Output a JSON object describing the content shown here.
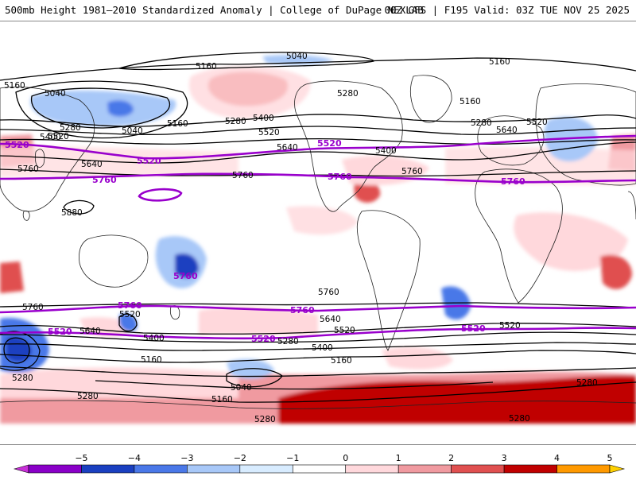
{
  "header": {
    "title": "500mb Height 1981–2010 Standardized Anomaly | College of DuPage NEXLAB",
    "model_valid": "00Z GFS | F195 Valid: 03Z TUE NOV 25 2025"
  },
  "colors": {
    "purple_contour": "#9900cc",
    "black_contour": "#000000",
    "land_outline": "#222222"
  },
  "contour_labels": {
    "l5040a": "5040",
    "l5160a": "5160",
    "l5160b": "5160",
    "l5160c": "5160",
    "l5160d": "5160",
    "l5040b": "5040",
    "l5040c": "5040",
    "l5280a": "5280",
    "l5280b": "5280",
    "l5280c": "5280",
    "l5280d": "5280",
    "l5400a": "5400",
    "l5400b": "5400",
    "l5520a": "5520",
    "l5520b": "5520",
    "l5520c": "5520",
    "l5640a": "5640",
    "l5640b": "5640",
    "l5760a": "5760",
    "l5760b": "5760",
    "l5880": "5880",
    "l5760c": "5760",
    "l5760d": "5760",
    "l5520d": "5520",
    "l5640c": "5640",
    "l5400c": "5400",
    "l5520e": "5520",
    "l5400d": "5400",
    "l5280e": "5280",
    "l5160e": "5160",
    "l5160f": "5160",
    "l5040d": "5040",
    "l5160g": "5160",
    "l5280f": "5280",
    "l5280g": "5280",
    "l5280h": "5280",
    "l5280i": "5280",
    "l5160h": "5160",
    "l5640d": "5640",
    "l5760e": "5760",
    "l5640e": "5640",
    "l5520f": "5520",
    "l5400e": "5400",
    "l5280j": "5280",
    "p5520a": "5520",
    "p5520b": "5520",
    "p5520c": "5520",
    "p5760a": "5760",
    "p5760b": "5760",
    "p5760c": "5760",
    "p5760d": "5760",
    "p5760e": "5760",
    "p5760f": "5760",
    "p5520d": "5520",
    "p5520e": "5520",
    "p5520f": "5520"
  },
  "colorbar": {
    "ticks": [
      "−5",
      "−4",
      "−3",
      "−2",
      "−1",
      "0",
      "1",
      "2",
      "3",
      "4",
      "5"
    ],
    "colors": [
      "#c830d8",
      "#8a00c8",
      "#1a3fc0",
      "#4a78e8",
      "#a8c8f8",
      "#d8ecff",
      "#ffffff",
      "#ffd8dc",
      "#f09aa0",
      "#e05050",
      "#c00000",
      "#ff9900",
      "#ffd000"
    ]
  }
}
